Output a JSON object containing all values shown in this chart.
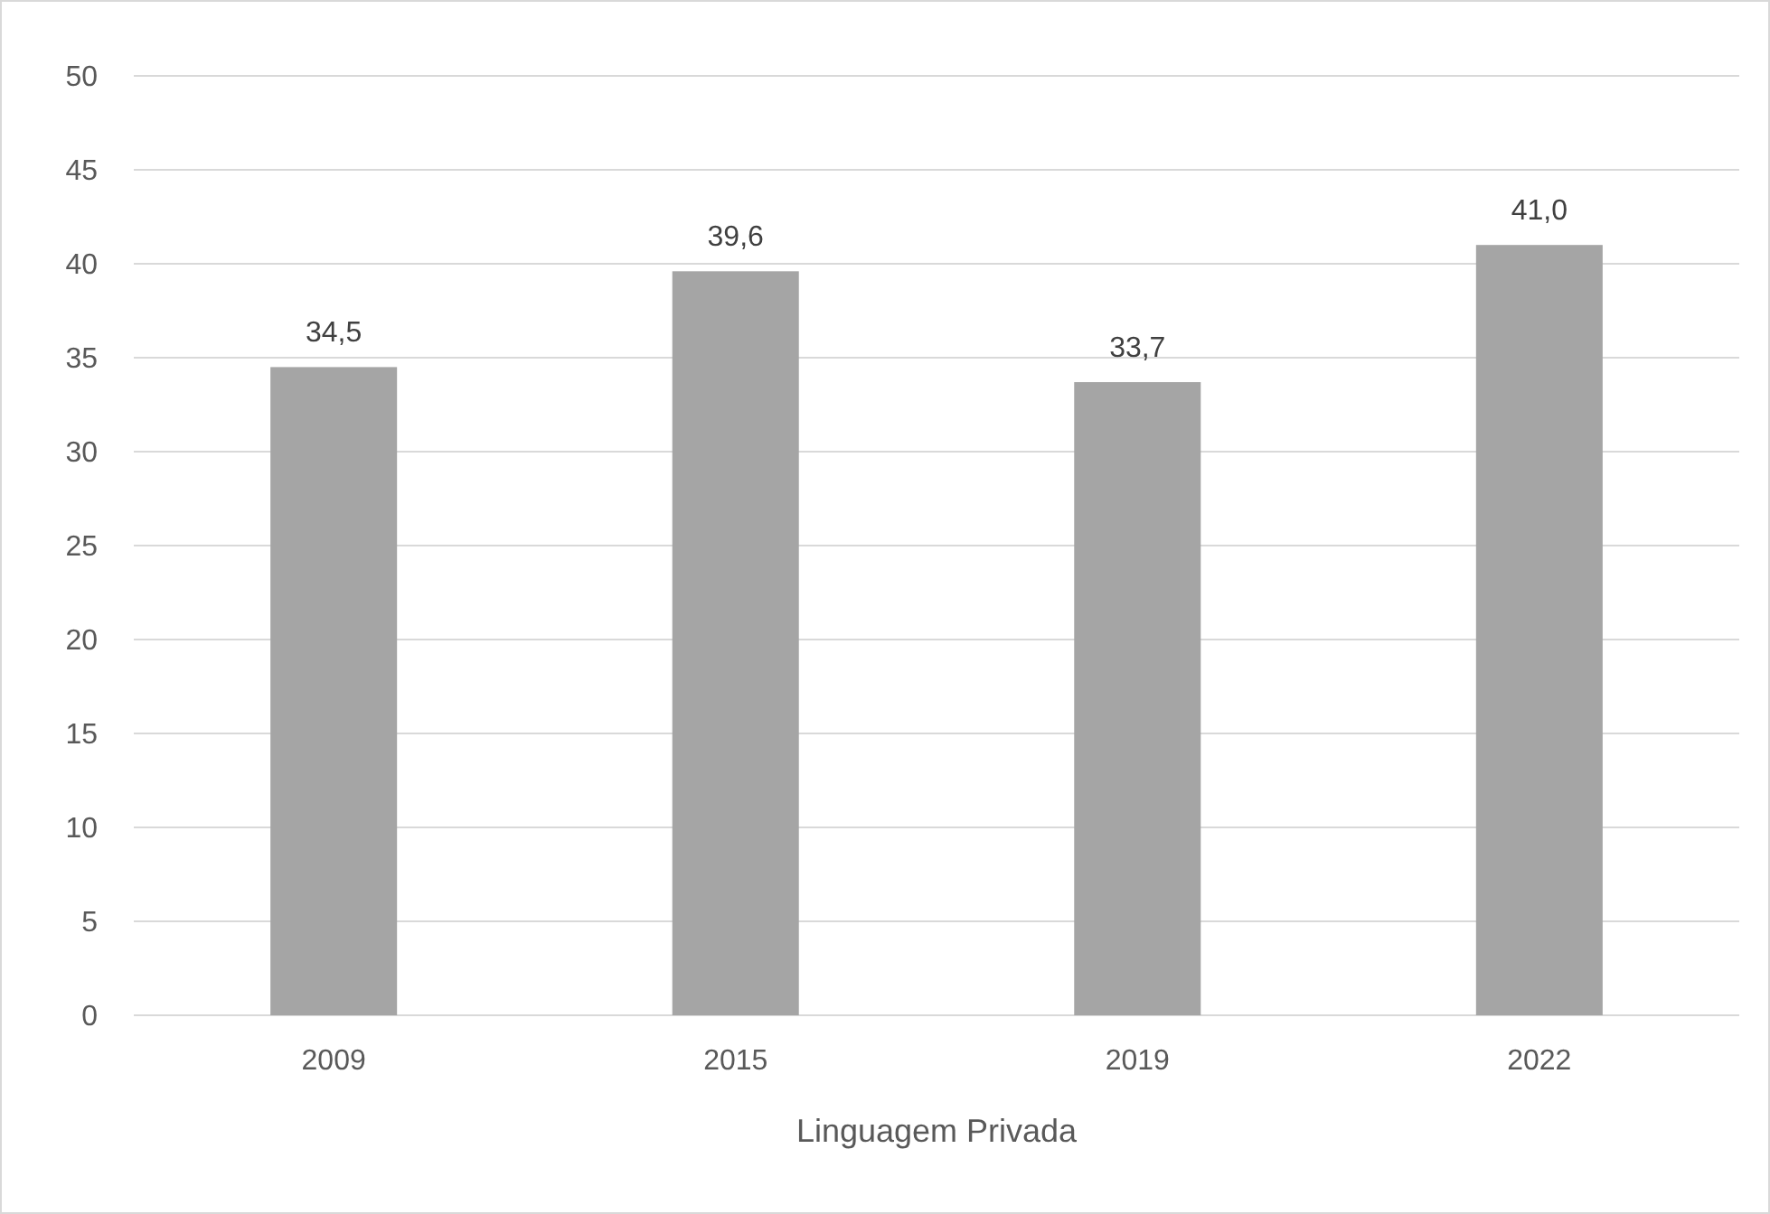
{
  "chart_data": {
    "type": "bar",
    "xlabel": "Linguagem Privada",
    "categories": [
      "2009",
      "2015",
      "2019",
      "2022"
    ],
    "series": [
      {
        "color": "#a5a5a5",
        "values": [
          34.5,
          39.6,
          33.7,
          41.0
        ],
        "value_labels": [
          "34,5",
          "39,6",
          "33,7",
          "41,0"
        ]
      }
    ],
    "ylim": [
      0,
      50
    ],
    "yticks": [
      0,
      5,
      10,
      15,
      20,
      25,
      30,
      35,
      40,
      45,
      50
    ],
    "grid": "y"
  }
}
